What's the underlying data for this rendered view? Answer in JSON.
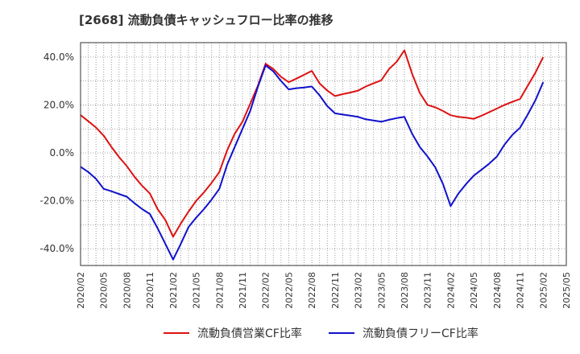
{
  "chart_data": {
    "type": "line",
    "title": "[2668]  流動負債キャッシュフロー比率の推移",
    "x": [
      "2020/02",
      "2020/03",
      "2020/04",
      "2020/05",
      "2020/06",
      "2020/07",
      "2020/08",
      "2020/09",
      "2020/10",
      "2020/11",
      "2020/12",
      "2021/01",
      "2021/02",
      "2021/03",
      "2021/04",
      "2021/05",
      "2021/06",
      "2021/07",
      "2021/08",
      "2021/09",
      "2021/10",
      "2021/11",
      "2021/12",
      "2022/01",
      "2022/02",
      "2022/03",
      "2022/04",
      "2022/05",
      "2022/06",
      "2022/07",
      "2022/08",
      "2022/09",
      "2022/10",
      "2022/11",
      "2022/12",
      "2023/01",
      "2023/02",
      "2023/03",
      "2023/04",
      "2023/05",
      "2023/06",
      "2023/07",
      "2023/08",
      "2023/09",
      "2023/10",
      "2023/11",
      "2023/12",
      "2024/01",
      "2024/02",
      "2024/03",
      "2024/04",
      "2024/05",
      "2024/06",
      "2024/07",
      "2024/08",
      "2024/09",
      "2024/10",
      "2024/11",
      "2024/12",
      "2025/01",
      "2025/02"
    ],
    "x_tick_labels": [
      "2020/02",
      "2020/05",
      "2020/08",
      "2020/11",
      "2021/02",
      "2021/05",
      "2021/08",
      "2021/11",
      "2022/02",
      "2022/05",
      "2022/08",
      "2022/11",
      "2023/02",
      "2023/05",
      "2023/08",
      "2023/11",
      "2024/02",
      "2024/05",
      "2024/08",
      "2024/11",
      "2025/02",
      "2025/05"
    ],
    "series": [
      {
        "name": "流動負債営業CF比率",
        "color": "#dd1111",
        "values": [
          15.8,
          13.2,
          10.6,
          7.2,
          2.5,
          -1.8,
          -5.5,
          -10.0,
          -13.8,
          -17.0,
          -23.5,
          -28.0,
          -35.0,
          -29.5,
          -24.5,
          -20.0,
          -16.5,
          -12.5,
          -8.0,
          1.0,
          8.0,
          13.0,
          20.5,
          28.0,
          37.2,
          35.0,
          31.7,
          29.5,
          31.0,
          32.6,
          34.2,
          29.0,
          26.0,
          23.7,
          24.5,
          25.2,
          26.0,
          27.7,
          29.0,
          30.3,
          35.0,
          38.0,
          42.8,
          33.0,
          25.0,
          20.0,
          19.0,
          17.5,
          15.7,
          15.0,
          14.7,
          14.2,
          15.5,
          17.0,
          18.5,
          20.0,
          21.3,
          22.5,
          28.0,
          33.5,
          40.0
        ]
      },
      {
        "name": "流動負債フリーCF比率",
        "color": "#1111cc",
        "values": [
          -5.8,
          -8.0,
          -10.8,
          -15.0,
          -16.0,
          -17.2,
          -18.3,
          -21.0,
          -23.5,
          -25.5,
          -31.5,
          -38.0,
          -44.5,
          -38.0,
          -31.0,
          -27.0,
          -23.5,
          -19.5,
          -15.0,
          -5.0,
          2.5,
          10.0,
          17.5,
          27.5,
          36.5,
          34.0,
          30.0,
          26.5,
          27.0,
          27.3,
          27.7,
          24.0,
          19.5,
          16.5,
          16.0,
          15.5,
          15.0,
          14.0,
          13.5,
          13.0,
          13.8,
          14.5,
          15.0,
          8.0,
          2.5,
          -1.5,
          -6.0,
          -13.0,
          -22.2,
          -17.0,
          -13.0,
          -9.5,
          -7.0,
          -4.5,
          -1.5,
          3.5,
          7.5,
          10.5,
          16.0,
          22.0,
          29.5
        ]
      }
    ],
    "ylim": [
      -47,
      46
    ],
    "yticks": [
      -40,
      -20,
      0,
      20,
      40
    ],
    "ytick_labels": [
      "-40.0%",
      "-20.0%",
      "0.0%",
      "20.0%",
      "40.0%"
    ],
    "xlabel": "",
    "ylabel": "",
    "grid": true,
    "legend_position": "bottom"
  }
}
